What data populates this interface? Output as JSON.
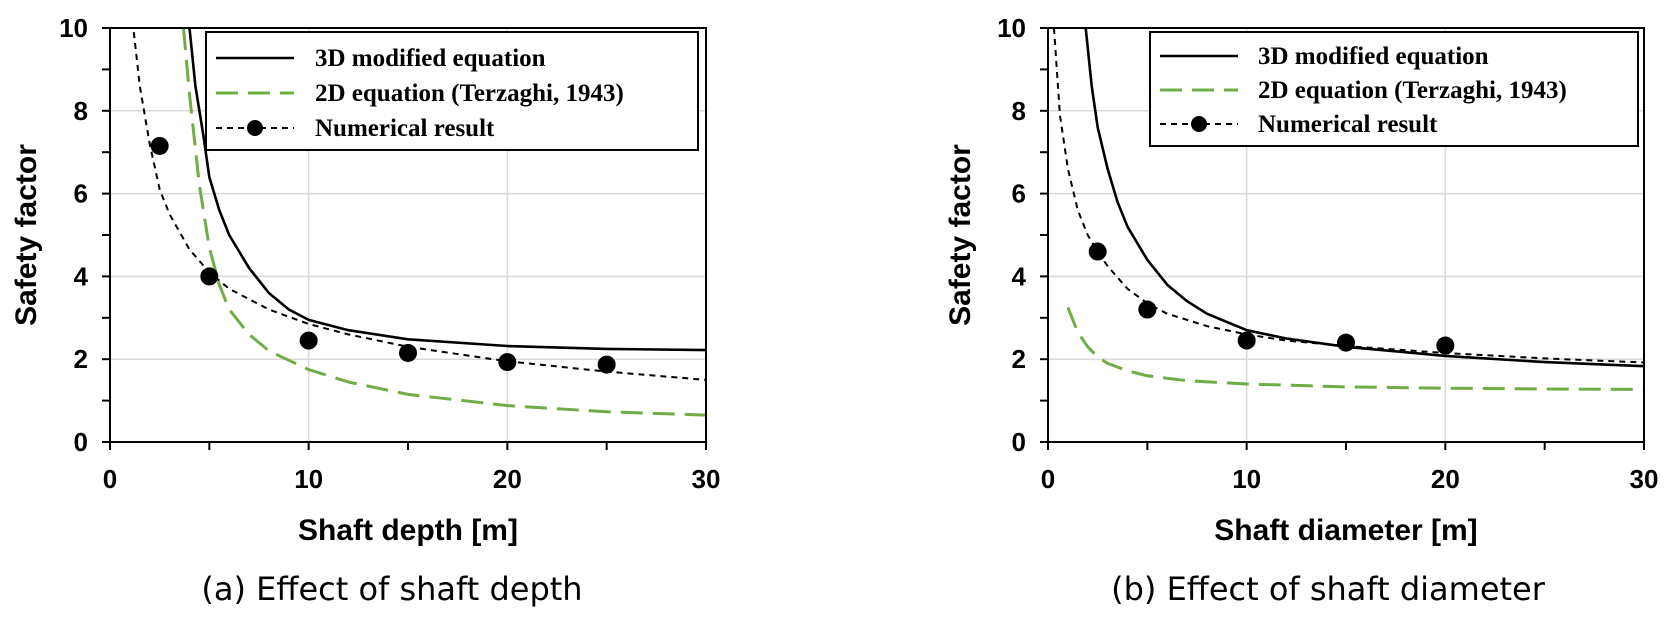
{
  "chart_data": [
    {
      "type": "line",
      "title": "",
      "caption": "(a) Effect of shaft depth",
      "xlabel": "Shaft depth [m]",
      "ylabel": "Safety factor",
      "xlim": [
        0,
        30
      ],
      "ylim": [
        0,
        10
      ],
      "xticks": [
        0,
        10,
        20,
        30
      ],
      "yticks": [
        0,
        2,
        4,
        6,
        8,
        10
      ],
      "grid": true,
      "legend_position": "top-right",
      "series": [
        {
          "name": "3D modified equation",
          "style": "solid",
          "color": "#000000",
          "x": [
            4.0,
            4.3,
            4.7,
            5.0,
            5.5,
            6.0,
            7.0,
            8.0,
            9.0,
            10.0,
            12.0,
            15.0,
            20.0,
            25.0,
            30.0
          ],
          "y": [
            10.0,
            8.6,
            7.4,
            6.4,
            5.6,
            5.0,
            4.2,
            3.6,
            3.2,
            2.95,
            2.7,
            2.48,
            2.32,
            2.25,
            2.22
          ]
        },
        {
          "name": "2D equation (Terzaghi, 1943)",
          "style": "long-dash",
          "color": "#70ad47",
          "x": [
            3.7,
            4.0,
            4.5,
            5.0,
            5.5,
            6.0,
            7.0,
            8.0,
            10.0,
            12.0,
            15.0,
            20.0,
            25.0,
            30.0
          ],
          "y": [
            10.0,
            8.4,
            6.2,
            4.7,
            3.8,
            3.2,
            2.6,
            2.2,
            1.75,
            1.45,
            1.15,
            0.88,
            0.73,
            0.65
          ]
        },
        {
          "name": "Numerical result",
          "style": "short-dash",
          "color": "#000000",
          "x": [
            1.2,
            1.5,
            2.0,
            2.5,
            3.0,
            4.0,
            5.0,
            6.0,
            8.0,
            10.0,
            12.0,
            15.0,
            20.0,
            25.0,
            30.0
          ],
          "y": [
            9.9,
            8.6,
            7.2,
            6.1,
            5.5,
            4.65,
            4.1,
            3.7,
            3.2,
            2.85,
            2.6,
            2.3,
            1.95,
            1.7,
            1.5
          ]
        }
      ],
      "points": {
        "name": "Numerical result",
        "x": [
          2.5,
          5,
          10,
          15,
          20,
          25
        ],
        "y": [
          7.15,
          4.0,
          2.45,
          2.15,
          1.93,
          1.87
        ]
      }
    },
    {
      "type": "line",
      "title": "",
      "caption": "(b) Effect of shaft diameter",
      "xlabel": "Shaft diameter [m]",
      "ylabel": "Safety factor",
      "xlim": [
        0,
        30
      ],
      "ylim": [
        0,
        10
      ],
      "xticks": [
        0,
        10,
        20,
        30
      ],
      "yticks": [
        0,
        2,
        4,
        6,
        8,
        10
      ],
      "grid": true,
      "legend_position": "top-right",
      "series": [
        {
          "name": "3D modified equation",
          "style": "solid",
          "color": "#000000",
          "x": [
            1.9,
            2.2,
            2.5,
            3.0,
            3.5,
            4.0,
            5.0,
            6.0,
            7.0,
            8.0,
            10.0,
            12.0,
            15.0,
            20.0,
            25.0,
            30.0
          ],
          "y": [
            10.0,
            8.6,
            7.6,
            6.6,
            5.8,
            5.2,
            4.4,
            3.8,
            3.4,
            3.1,
            2.7,
            2.5,
            2.3,
            2.08,
            1.93,
            1.83
          ]
        },
        {
          "name": "2D equation (Terzaghi, 1943)",
          "style": "long-dash",
          "color": "#70ad47",
          "x": [
            1.0,
            1.5,
            2.0,
            2.5,
            3.0,
            4.0,
            5.0,
            7.0,
            10.0,
            15.0,
            20.0,
            25.0,
            30.0
          ],
          "y": [
            3.25,
            2.65,
            2.3,
            2.05,
            1.9,
            1.72,
            1.6,
            1.48,
            1.4,
            1.33,
            1.3,
            1.28,
            1.27
          ]
        },
        {
          "name": "Numerical result",
          "style": "short-dash",
          "color": "#000000",
          "x": [
            0.3,
            0.6,
            1.0,
            1.5,
            2.0,
            2.5,
            3.0,
            4.0,
            5.0,
            6.0,
            8.0,
            10.0,
            12.0,
            15.0,
            20.0,
            25.0,
            30.0
          ],
          "y": [
            10.0,
            7.9,
            6.6,
            5.6,
            5.0,
            4.6,
            4.25,
            3.7,
            3.35,
            3.1,
            2.8,
            2.6,
            2.45,
            2.32,
            2.15,
            2.02,
            1.92
          ]
        }
      ],
      "points": {
        "name": "Numerical result",
        "x": [
          2.5,
          5,
          10,
          15,
          20
        ],
        "y": [
          4.6,
          3.2,
          2.45,
          2.4,
          2.33
        ]
      }
    }
  ]
}
